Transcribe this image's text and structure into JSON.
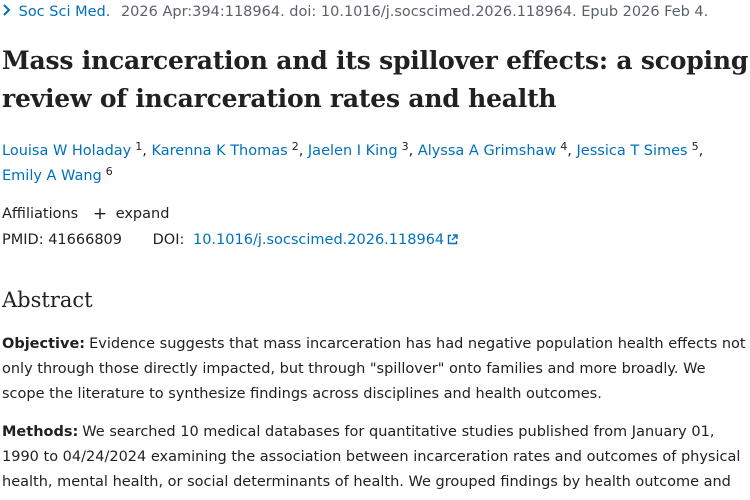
{
  "citation": {
    "journal": "Soc Sci Med.",
    "details": "2026 Apr:394:118964. doi: 10.1016/j.socscimed.2026.118964. Epub 2026 Feb 4."
  },
  "title": "Mass incarceration and its spillover effects: a scoping review of incarceration rates and health",
  "authors": [
    {
      "name": "Louisa W Holaday",
      "sup": "1"
    },
    {
      "name": "Karenna K Thomas",
      "sup": "2"
    },
    {
      "name": "Jaelen I King",
      "sup": "3"
    },
    {
      "name": "Alyssa A Grimshaw",
      "sup": "4"
    },
    {
      "name": "Jessica T Simes",
      "sup": "5"
    },
    {
      "name": "Emily A Wang",
      "sup": "6"
    }
  ],
  "affiliations": {
    "label": "Affiliations",
    "expand": "expand"
  },
  "ids": {
    "pmid_label": "PMID:",
    "pmid": "41666809",
    "doi_label": "DOI:",
    "doi": "10.1016/j.socscimed.2026.118964"
  },
  "abstract": {
    "heading": "Abstract",
    "paragraphs": [
      {
        "label": "Objective:",
        "text": "Evidence suggests that mass incarceration has had negative population health effects not only through those directly impacted, but through \"spillover\" onto families and more broadly. We scope the literature to synthesize findings across disciplines and health outcomes."
      },
      {
        "label": "Methods:",
        "text": "We searched 10 medical databases for quantitative studies published from January 01, 1990 to 04/24/2024 examining the association between incarceration rates and outcomes of physical health, mental health, or social determinants of health. We grouped findings by health outcome and"
      }
    ]
  },
  "colors": {
    "link": "#0071bc",
    "text": "#212121",
    "muted": "#5b616b"
  }
}
